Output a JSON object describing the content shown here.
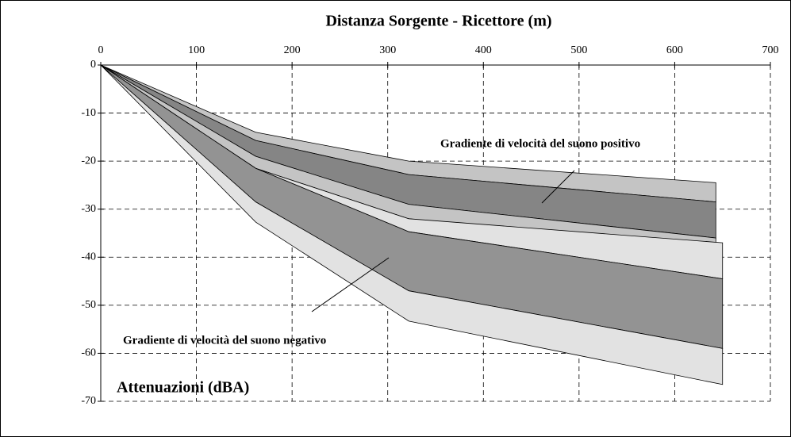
{
  "chart_data": {
    "type": "band",
    "title": "Distanza Sorgente - Ricettore (m)",
    "y_label": "Attenuazioni (dBA)",
    "annotations": [
      "Gradiente di velocità del suono positivo",
      "Gradiente di velocità del suono negativo"
    ],
    "xlim": [
      0,
      700
    ],
    "xticks": [
      0,
      100,
      200,
      300,
      400,
      500,
      600,
      700
    ],
    "ylim": [
      -70,
      0
    ],
    "yticks": [
      0,
      -10,
      -20,
      -30,
      -40,
      -50,
      -60,
      -70
    ],
    "grid": true,
    "bands": [
      {
        "color": "#c4c4c4",
        "x": [
          0,
          162,
          322,
          643
        ],
        "upper": [
          0,
          -14,
          -20,
          -24.5
        ],
        "lower": [
          0,
          -15.7,
          -22.8,
          -28.5
        ]
      },
      {
        "color": "#858585",
        "x": [
          0,
          162,
          322,
          643
        ],
        "upper": [
          0,
          -15.7,
          -22.8,
          -28.5
        ],
        "lower": [
          0,
          -19,
          -29,
          -36
        ]
      },
      {
        "color": "#c4c4c4",
        "x": [
          0,
          162,
          322,
          643
        ],
        "upper": [
          0,
          -19,
          -29,
          -36
        ],
        "lower": [
          0,
          -21.5,
          -32,
          -40
        ]
      },
      {
        "color": "#e2e2e2",
        "x": [
          0,
          162,
          322,
          650
        ],
        "upper": [
          0,
          -21.5,
          -32,
          -37
        ],
        "lower": [
          0,
          -21.5,
          -34.7,
          -44.5
        ]
      },
      {
        "color": "#939393",
        "x": [
          0,
          162,
          322,
          650
        ],
        "upper": [
          0,
          -21.5,
          -34.7,
          -44.5
        ],
        "lower": [
          0,
          -28.5,
          -47,
          -59
        ]
      },
      {
        "color": "#e2e2e2",
        "x": [
          0,
          162,
          322,
          650
        ],
        "upper": [
          0,
          -28.5,
          -47,
          -59
        ],
        "lower": [
          0,
          -32.7,
          -53.3,
          -66.5
        ]
      }
    ]
  }
}
